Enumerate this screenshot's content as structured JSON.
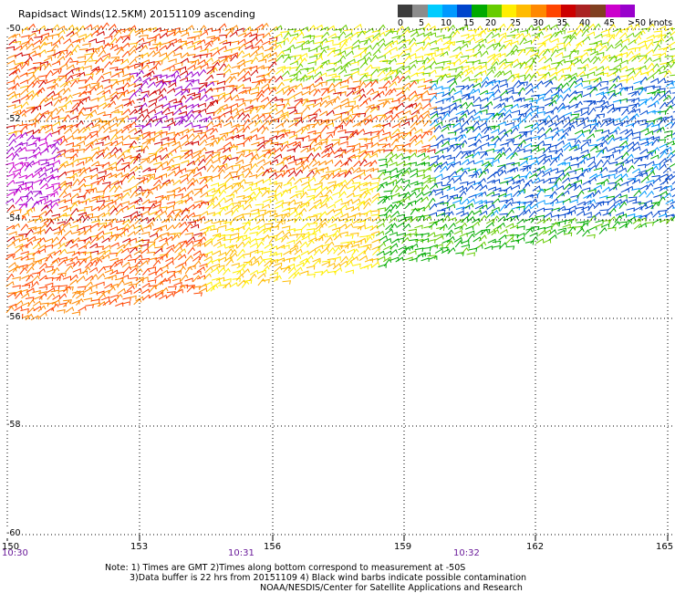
{
  "title": "Rapidsact Winds(12.5KM) 20151109 ascending",
  "colorbar": {
    "colors": [
      "#3c3c3c",
      "#8c8c8c",
      "#00ccff",
      "#0099ff",
      "#0044cc",
      "#00aa00",
      "#66cc00",
      "#ffee00",
      "#ffbb00",
      "#ff8800",
      "#ff4400",
      "#cc0000",
      "#aa2222",
      "#804020",
      "#cc00cc",
      "#9900cc"
    ],
    "labels": [
      "0",
      "5",
      "10",
      "15",
      "20",
      "25",
      "30",
      "35",
      "40",
      "45",
      ">50 knots"
    ]
  },
  "lon_labels": [
    "150",
    "153",
    "156",
    "159",
    "162",
    "165"
  ],
  "lat_labels": [
    "-50",
    "-52",
    "-54",
    "-56",
    "-58",
    "-60"
  ],
  "time_labels": [
    "10:30",
    "10:31",
    "10:32"
  ],
  "notes": [
    "Note: 1) Times are GMT 2)Times along bottom correspond to measurement at -50S",
    "3)Data buffer is 22 hrs from 20151109 4) Black wind barbs indicate possible contamination",
    "NOAA/NESDIS/Center for Satellite Applications and Research"
  ]
}
